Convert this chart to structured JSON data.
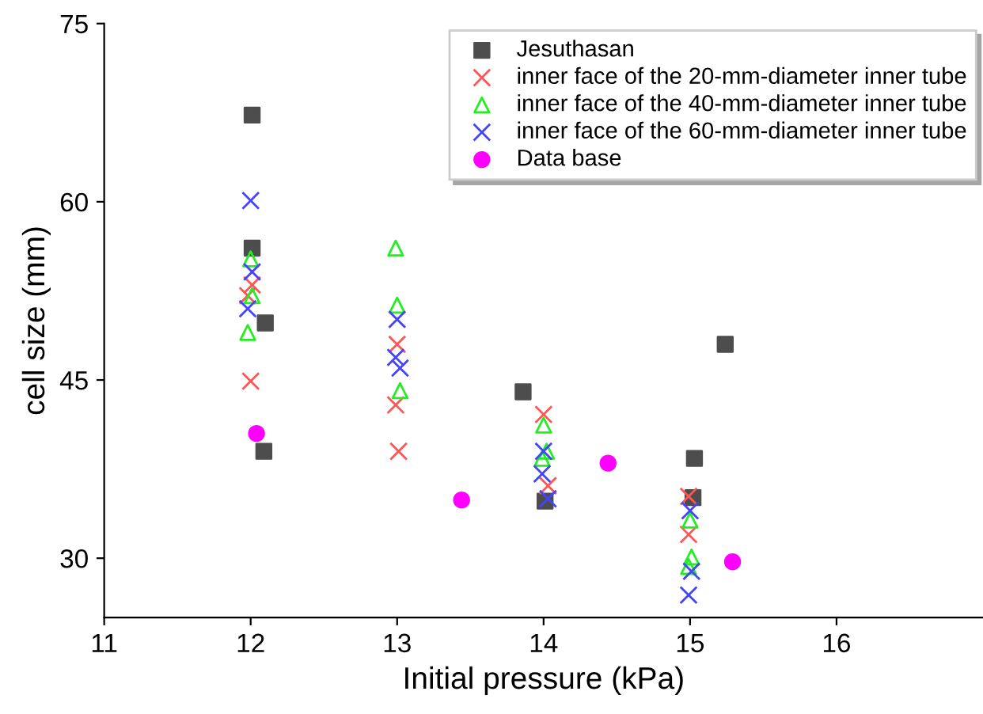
{
  "chart_data": {
    "type": "scatter",
    "xlabel": "Initial pressure (kPa)",
    "ylabel": "cell size (mm)",
    "xlim": [
      11,
      17
    ],
    "ylim": [
      25,
      75
    ],
    "xticks": [
      11,
      12,
      13,
      14,
      15,
      16
    ],
    "yticks": [
      30,
      45,
      60,
      75
    ],
    "grid": false,
    "legend": "top right",
    "series": [
      {
        "name": "Jesuthasan",
        "color": "#4d4d4d",
        "marker": "square",
        "x": [
          12.01,
          12.01,
          12.1,
          12.09,
          13.86,
          14.01,
          15.03,
          15.02,
          15.24
        ],
        "values": [
          67.3,
          56.1,
          49.8,
          39.0,
          44.0,
          34.8,
          38.4,
          35.1,
          48.0
        ]
      },
      {
        "name": "inner face of the 20-mm-diameter inner tube",
        "color": "#ff5555",
        "marker": "cross",
        "x": [
          12.01,
          11.98,
          12.0,
          13.0,
          12.99,
          13.01,
          14.0,
          14.03,
          14.99,
          14.99
        ],
        "values": [
          53.0,
          52.1,
          44.9,
          48.0,
          42.9,
          39.0,
          42.1,
          36.1,
          35.2,
          32.0
        ]
      },
      {
        "name": "inner face of the 40-mm-diameter inner tube",
        "color": "#22ee22",
        "marker": "triangle",
        "x": [
          12.0,
          12.01,
          11.98,
          12.99,
          13.0,
          13.02,
          14.0,
          14.02,
          13.99,
          15.0,
          15.01,
          14.99
        ],
        "values": [
          55.2,
          52.1,
          49.0,
          56.1,
          51.3,
          44.1,
          41.2,
          39.0,
          38.4,
          33.2,
          30.1,
          29.3
        ]
      },
      {
        "name": "inner face of the 60-mm-diameter inner tube",
        "color": "#4444ff",
        "marker": "cross",
        "x": [
          12.0,
          12.01,
          11.98,
          13.0,
          12.99,
          13.02,
          14.0,
          13.99,
          14.03,
          15.0,
          15.01,
          14.99
        ],
        "values": [
          60.1,
          54.1,
          51.0,
          50.1,
          46.9,
          46.0,
          39.0,
          37.1,
          35.0,
          34.0,
          28.9,
          26.9
        ]
      },
      {
        "name": "Data base",
        "color": "#ff00ff",
        "marker": "circle",
        "x": [
          12.04,
          13.44,
          14.44,
          15.29
        ],
        "values": [
          40.5,
          34.9,
          38.0,
          29.7
        ]
      }
    ]
  }
}
